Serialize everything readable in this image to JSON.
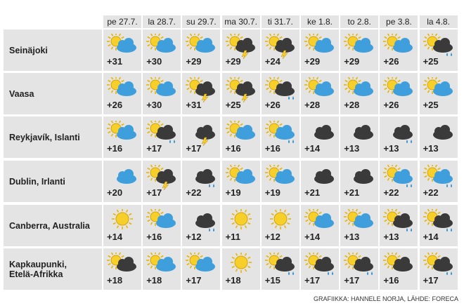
{
  "header": {
    "days": [
      "pe 27.7.",
      "la 28.7.",
      "su 29.7.",
      "ma 30.7.",
      "ti 31.7.",
      "ke 1.8.",
      "to 2.8.",
      "pe 3.8.",
      "la 4.8."
    ]
  },
  "rows": [
    {
      "city": "Seinäjoki",
      "temps": [
        "+31",
        "+30",
        "+29",
        "+29",
        "+24",
        "+29",
        "+29",
        "+26",
        "+25"
      ]
    },
    {
      "city": "Vaasa",
      "temps": [
        "+26",
        "+30",
        "+31",
        "+25",
        "+26",
        "+28",
        "+28",
        "+26",
        "+25"
      ]
    },
    {
      "city": "Reykjavík, Islanti",
      "temps": [
        "+16",
        "+17",
        "+17",
        "+16",
        "+16",
        "+14",
        "+13",
        "+13",
        "+13"
      ]
    },
    {
      "city": "Dublin, Irlanti",
      "temps": [
        "+20",
        "+17",
        "+22",
        "+19",
        "+19",
        "+21",
        "+21",
        "+22",
        "+22"
      ]
    },
    {
      "city": "Canberra, Australia",
      "temps": [
        "+14",
        "+16",
        "+12",
        "+11",
        "+12",
        "+14",
        "+13",
        "+13",
        "+14"
      ]
    },
    {
      "city": "Kapkaupunki,\nEtelä-Afrikka",
      "temps": [
        "+18",
        "+18",
        "+17",
        "+18",
        "+15",
        "+17",
        "+17",
        "+16",
        "+17"
      ]
    }
  ],
  "footer": {
    "credit": "GRAFIIKKA: HANNELE NORJA, LÄHDE: FORECA"
  }
}
